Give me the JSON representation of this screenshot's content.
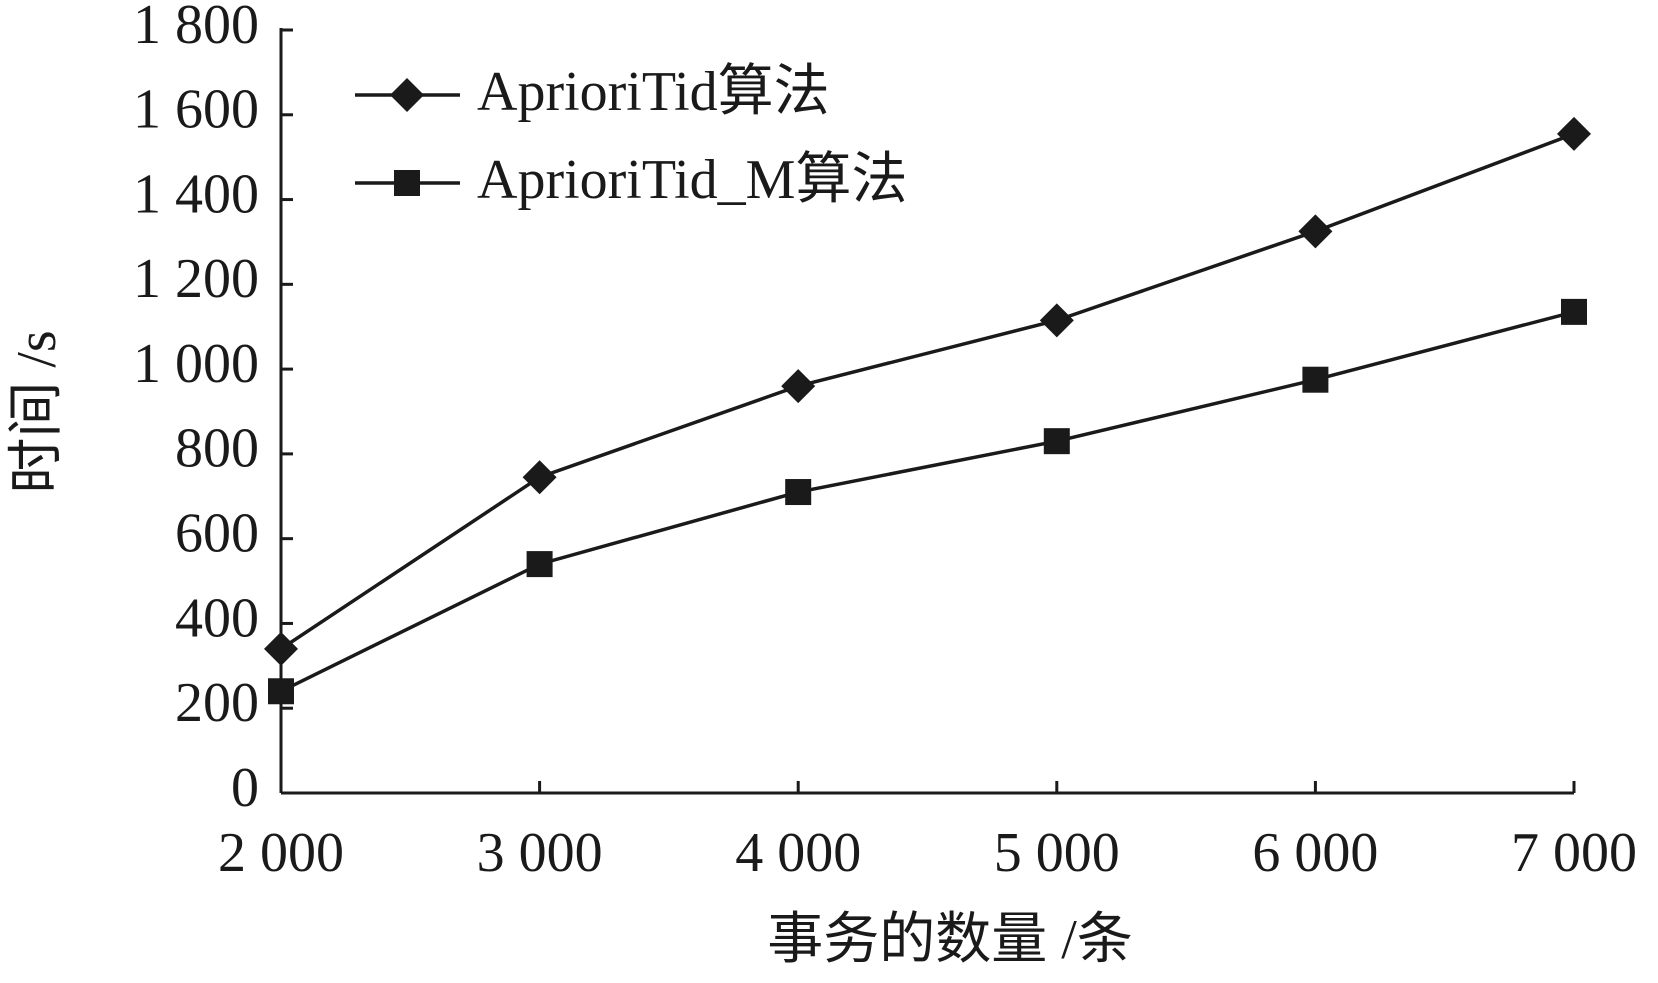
{
  "chart_data": {
    "type": "line",
    "x_label": "事务的数量 /条",
    "y_label": "时间 /s",
    "x": [
      2000,
      3000,
      4000,
      5000,
      6000,
      7000
    ],
    "series": [
      {
        "name": "AprioriTid算法",
        "color": "#1a1a1a",
        "marker": "diamond",
        "values": [
          340,
          745,
          960,
          1115,
          1325,
          1555
        ]
      },
      {
        "name": "AprioriTid_M算法",
        "color": "#1a1a1a",
        "marker": "square",
        "values": [
          240,
          540,
          710,
          830,
          975,
          1135
        ]
      }
    ],
    "xlim": [
      2000,
      7000
    ],
    "xticks": [
      {
        "value": 2000,
        "label": "2 000"
      },
      {
        "value": 3000,
        "label": "3 000"
      },
      {
        "value": 4000,
        "label": "4 000"
      },
      {
        "value": 5000,
        "label": "5 000"
      },
      {
        "value": 6000,
        "label": "6 000"
      },
      {
        "value": 7000,
        "label": "7 000"
      }
    ],
    "ylim": [
      0,
      1800
    ],
    "yticks": [
      0,
      200,
      400,
      600,
      800,
      {
        "value": 1000,
        "label": "1 000"
      },
      {
        "value": 1200,
        "label": "1 200"
      },
      {
        "value": 1400,
        "label": "1 400"
      },
      {
        "value": 1600,
        "label": "1 600"
      },
      {
        "value": 1800,
        "label": "1 800"
      }
    ],
    "legend": "upper-left",
    "grid": false
  }
}
